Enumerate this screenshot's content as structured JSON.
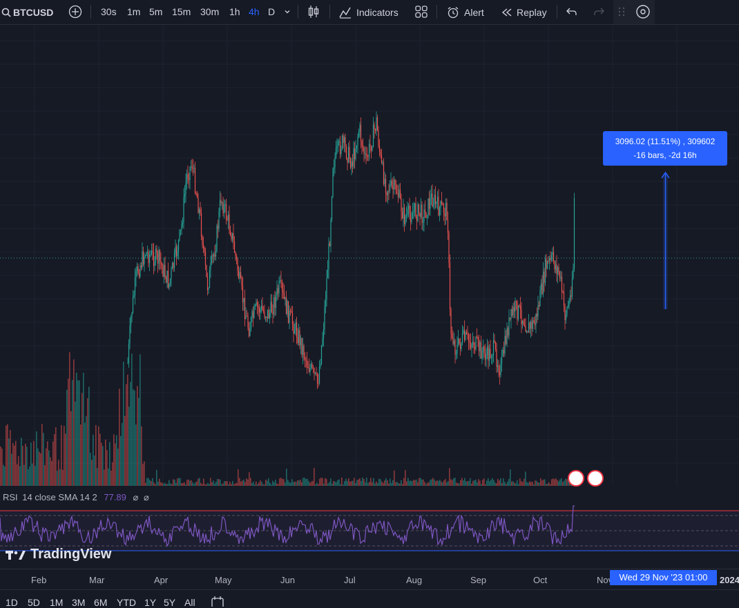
{
  "toolbar": {
    "symbol": "BTCUSD",
    "timeframes": [
      "30s",
      "1m",
      "5m",
      "15m",
      "30m",
      "1h",
      "4h",
      "D"
    ],
    "active_timeframe": "4h",
    "indicators_label": "Indicators",
    "alert_label": "Alert",
    "replay_label": "Replay"
  },
  "measure_tooltip": {
    "line1": "3096.02 (11.51%) , 309602",
    "line2": "-16 bars, -2d 16h"
  },
  "rsi": {
    "name": "RSI",
    "params": "14 close SMA 14 2",
    "value": "77.89"
  },
  "watermark": "TradingView",
  "time_axis": {
    "labels": [
      "Feb",
      "Mar",
      "Apr",
      "May",
      "Jun",
      "Jul",
      "Aug",
      "Sep",
      "Oct",
      "Nov",
      "2024"
    ],
    "crosshair": "Wed 29 Nov '23   01:00"
  },
  "ranges": [
    "1D",
    "5D",
    "1M",
    "3M",
    "6M",
    "YTD",
    "1Y",
    "5Y",
    "All"
  ],
  "colors": {
    "up": "#26a69a",
    "down": "#ef5350",
    "accent": "#2962ff",
    "rsi": "#7e57c2"
  }
}
